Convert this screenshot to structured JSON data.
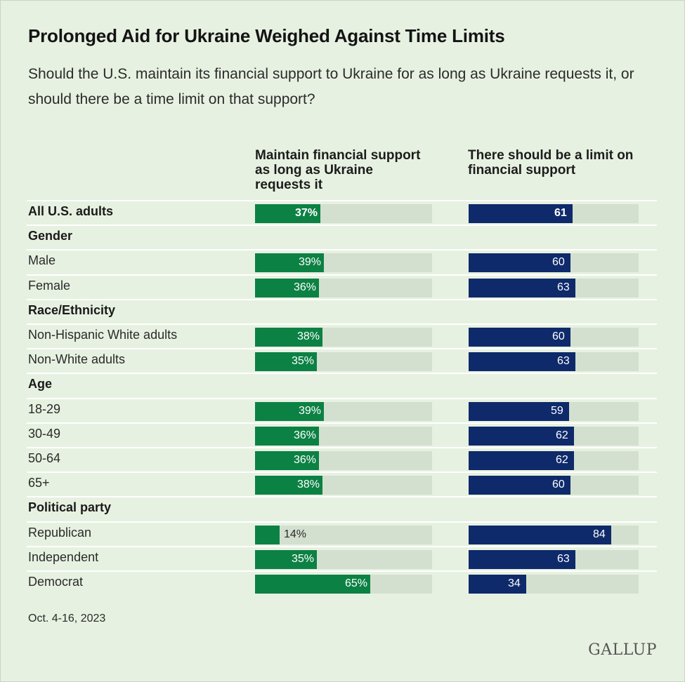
{
  "title": "Prolonged Aid for Ukraine Weighed Against Time Limits",
  "subtitle": "Should the U.S. maintain its financial support to Ukraine for as long as Ukraine requests it, or should there be a time limit on that support?",
  "date": "Oct. 4-16, 2023",
  "logo": "GALLUP",
  "colors": {
    "background": "#e7f1e1",
    "track": "#d4e0cf",
    "maintain": "#0c8144",
    "limit": "#0e2a6b"
  },
  "chart_data": {
    "type": "bar",
    "orientation": "horizontal",
    "series": [
      {
        "name": "Maintain financial support as long as Ukraine requests it",
        "unit_suffix": "%",
        "values": [
          37,
          39,
          36,
          38,
          35,
          39,
          36,
          36,
          38,
          14,
          35,
          65
        ]
      },
      {
        "name": "There should be a limit on financial support",
        "unit_suffix": "",
        "values": [
          61,
          60,
          63,
          60,
          63,
          59,
          62,
          62,
          60,
          84,
          63,
          34
        ]
      }
    ],
    "categories": [
      "All U.S. adults",
      "Male",
      "Female",
      "Non-Hispanic White adults",
      "Non-White adults",
      "18-29",
      "30-49",
      "50-64",
      "65+",
      "Republican",
      "Independent",
      "Democrat"
    ],
    "rows": [
      {
        "label": "All U.S. adults",
        "kind": "bold",
        "maintain": 37,
        "limit": 61
      },
      {
        "label": "Gender",
        "kind": "header"
      },
      {
        "label": "Male",
        "kind": "item",
        "maintain": 39,
        "limit": 60
      },
      {
        "label": "Female",
        "kind": "item",
        "maintain": 36,
        "limit": 63
      },
      {
        "label": "Race/Ethnicity",
        "kind": "header"
      },
      {
        "label": "Non-Hispanic White adults",
        "kind": "item",
        "maintain": 38,
        "limit": 60
      },
      {
        "label": "Non-White adults",
        "kind": "item",
        "maintain": 35,
        "limit": 63
      },
      {
        "label": "Age",
        "kind": "header"
      },
      {
        "label": "18-29",
        "kind": "item",
        "maintain": 39,
        "limit": 59
      },
      {
        "label": "30-49",
        "kind": "item",
        "maintain": 36,
        "limit": 62
      },
      {
        "label": "50-64",
        "kind": "item",
        "maintain": 36,
        "limit": 62
      },
      {
        "label": "65+",
        "kind": "item",
        "maintain": 38,
        "limit": 60
      },
      {
        "label": "Political party",
        "kind": "header"
      },
      {
        "label": "Republican",
        "kind": "item",
        "maintain": 14,
        "limit": 84
      },
      {
        "label": "Independent",
        "kind": "item",
        "maintain": 35,
        "limit": 63
      },
      {
        "label": "Democrat",
        "kind": "item",
        "maintain": 65,
        "limit": 34
      }
    ],
    "xlim": [
      0,
      100
    ],
    "title": "Prolonged Aid for Ukraine Weighed Against Time Limits",
    "legend": "column headers"
  }
}
